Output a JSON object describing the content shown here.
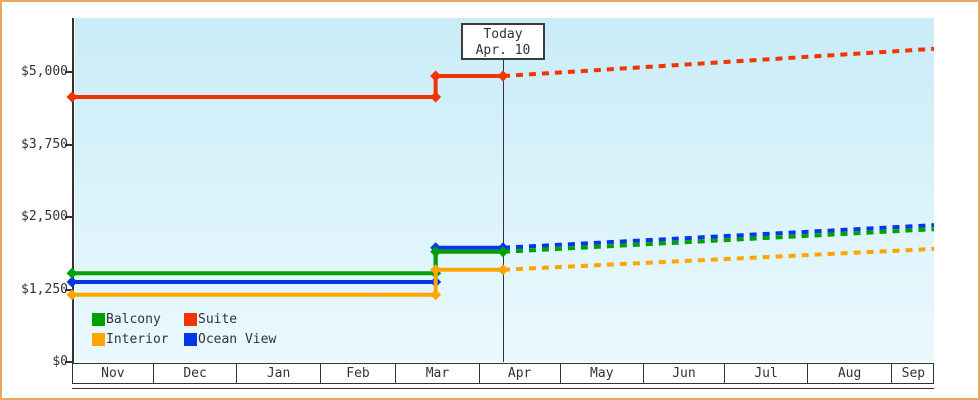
{
  "frame": {
    "border_color": "#e9a95e",
    "plot_bg_top": "#c9ecf8",
    "plot_bg_bottom": "#eaf9fe",
    "axis_color": "#333333",
    "text_color": "#333333"
  },
  "chart_data": {
    "type": "line",
    "title": "",
    "description": "Cabin price history by month with step changes mid-March, a Today (Apr. 10) marker, and dashed projected prices afterward",
    "grid": false,
    "legend_position": "bottom-left",
    "y_axis": {
      "range": [
        0,
        5900
      ],
      "ticks": [
        {
          "label": "$5,000",
          "value": 5000
        },
        {
          "label": "$3,750",
          "value": 3750
        },
        {
          "label": "$2,500",
          "value": 2500
        },
        {
          "label": "$1,250",
          "value": 1250
        },
        {
          "label": "$0",
          "value": 0
        }
      ]
    },
    "x_axis": {
      "total_days": 320,
      "months": [
        {
          "label": "Nov",
          "days": 30
        },
        {
          "label": "Dec",
          "days": 31
        },
        {
          "label": "Jan",
          "days": 31
        },
        {
          "label": "Feb",
          "days": 28
        },
        {
          "label": "Mar",
          "days": 31
        },
        {
          "label": "Apr",
          "days": 30
        },
        {
          "label": "May",
          "days": 31
        },
        {
          "label": "Jun",
          "days": 30
        },
        {
          "label": "Jul",
          "days": 31
        },
        {
          "label": "Aug",
          "days": 31
        },
        {
          "label": "Sep",
          "days": 16
        }
      ]
    },
    "today": {
      "day": 160,
      "label_top": "Today",
      "label_bottom": "Apr. 10"
    },
    "series": [
      {
        "name": "Ocean View",
        "color": "#0038e8",
        "history": [
          {
            "day": 0,
            "value": 1380
          },
          {
            "day": 135,
            "value": 1380
          },
          {
            "day": 135,
            "value": 1970
          },
          {
            "day": 160,
            "value": 1970
          }
        ],
        "projection": [
          {
            "day": 160,
            "value": 1970
          },
          {
            "day": 320,
            "value": 2360
          }
        ]
      },
      {
        "name": "Balcony",
        "color": "#00a000",
        "history": [
          {
            "day": 0,
            "value": 1530
          },
          {
            "day": 135,
            "value": 1530
          },
          {
            "day": 135,
            "value": 1900
          },
          {
            "day": 160,
            "value": 1900
          }
        ],
        "projection": [
          {
            "day": 160,
            "value": 1900
          },
          {
            "day": 320,
            "value": 2290
          }
        ]
      },
      {
        "name": "Interior",
        "color": "#ffa500",
        "history": [
          {
            "day": 0,
            "value": 1160
          },
          {
            "day": 135,
            "value": 1160
          },
          {
            "day": 135,
            "value": 1590
          },
          {
            "day": 160,
            "value": 1590
          }
        ],
        "projection": [
          {
            "day": 160,
            "value": 1590
          },
          {
            "day": 320,
            "value": 1950
          }
        ]
      },
      {
        "name": "Suite",
        "color": "#f23400",
        "history": [
          {
            "day": 0,
            "value": 4570
          },
          {
            "day": 135,
            "value": 4570
          },
          {
            "day": 135,
            "value": 4930
          },
          {
            "day": 160,
            "value": 4930
          }
        ],
        "projection": [
          {
            "day": 160,
            "value": 4930
          },
          {
            "day": 320,
            "value": 5400
          }
        ]
      }
    ],
    "legend": {
      "items": [
        {
          "label": "Balcony",
          "color": "#00a000"
        },
        {
          "label": "Suite",
          "color": "#f23400"
        },
        {
          "label": "Interior",
          "color": "#ffa500"
        },
        {
          "label": "Ocean View",
          "color": "#0038e8"
        }
      ]
    }
  }
}
